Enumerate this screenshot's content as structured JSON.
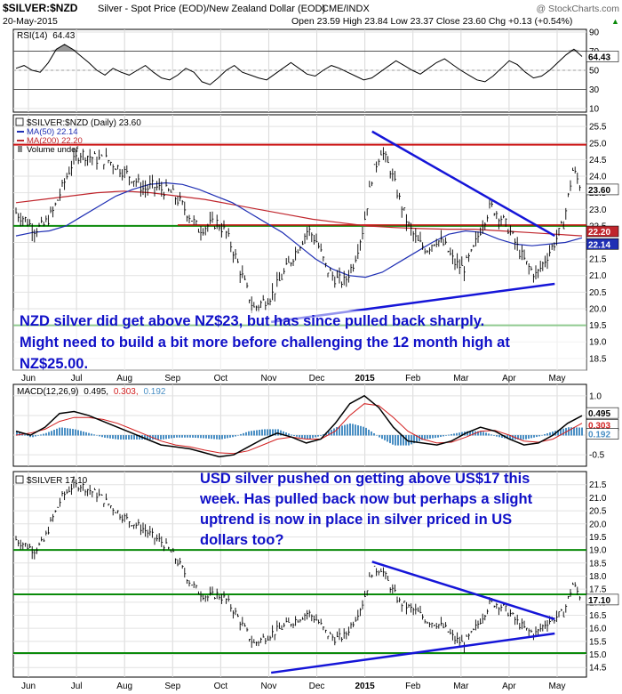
{
  "header": {
    "symbol": "$SILVER:$NZD",
    "description": "Silver - Spot Price (EOD)/New Zealand Dollar (EOD)",
    "exchange": "CME/INDX",
    "watermark": "@ StockCharts.com",
    "date": "20-May-2015",
    "ohlc": "Open 23.59  High 23.84  Low 23.37  Close 23.60  Chg +0.13 (+0.54%)",
    "up_arrow": "▲"
  },
  "annotations": {
    "nzd_lines": [
      "NZD silver did get above NZ$23, but has since pulled back sharply.",
      "Might need to build a bit more before challenging the 12 month high at",
      "NZ$25.00."
    ],
    "usd_lines": [
      "USD silver pushed on getting above US$17 this",
      "week. Has pulled back now but perhaps a slight",
      "uptrend is now in place in silver priced in US",
      "dollars too?"
    ]
  },
  "x_axis": {
    "months": [
      "Jun",
      "Jul",
      "Aug",
      "Sep",
      "Oct",
      "Nov",
      "Dec",
      "2015",
      "Feb",
      "Mar",
      "Apr",
      "May"
    ],
    "month_positions": [
      0,
      1,
      2,
      3,
      4,
      5,
      6,
      7,
      8,
      9,
      10,
      11
    ]
  },
  "colors": {
    "price": "#000000",
    "ma50": "#1f2fb4",
    "ma200": "#c0262d",
    "trend": "#1515d8",
    "support": "#0a8a0a",
    "resistance": "#cc1111",
    "macd_hist": "#4a8fc4",
    "annotation": "#1010c8"
  },
  "chart_data": [
    {
      "id": "rsi",
      "type": "line",
      "title": "RSI(14) 64.43",
      "label_prefix": "RSI(14)",
      "label_value": "64.43",
      "y_ticks": [
        10,
        30,
        50,
        70,
        90
      ],
      "ylim": [
        10,
        90
      ],
      "ref_lines": [
        30,
        70
      ],
      "last_tag": "64.43",
      "last_value": 64.43,
      "values": [
        52,
        55,
        50,
        48,
        58,
        72,
        77,
        72,
        65,
        58,
        50,
        45,
        52,
        48,
        45,
        50,
        55,
        48,
        42,
        40,
        45,
        52,
        48,
        38,
        35,
        42,
        50,
        55,
        48,
        45,
        42,
        40,
        46,
        52,
        58,
        52,
        46,
        44,
        50,
        55,
        52,
        48,
        44,
        40,
        42,
        48,
        54,
        60,
        55,
        50,
        46,
        52,
        58,
        62,
        56,
        50,
        45,
        40,
        38,
        44,
        52,
        60,
        56,
        48,
        42,
        44,
        50,
        58,
        66,
        72,
        64.43
      ]
    },
    {
      "id": "price",
      "type": "line",
      "title": "$SILVER:$NZD (Daily) 23.60",
      "label_main": "$SILVER:$NZD (Daily) 23.60",
      "label_ma50": "MA(50) 22.14",
      "label_ma200": "MA(200) 22.20",
      "label_volume": "Volume undef",
      "y_ticks": [
        18.5,
        19.0,
        19.5,
        20.0,
        20.5,
        21.0,
        21.5,
        22.0,
        22.5,
        23.0,
        23.5,
        24.0,
        24.5,
        25.0,
        25.5
      ],
      "ylim": [
        18.2,
        25.8
      ],
      "resistance": 24.95,
      "support_mid": 22.5,
      "support_low": 19.5,
      "tags": [
        {
          "text": "23.60",
          "value": 23.6,
          "kind": "price"
        },
        {
          "text": "22.20",
          "value": 22.2,
          "kind": "ma200"
        },
        {
          "text": "22.14",
          "value": 22.14,
          "kind": "ma50"
        }
      ],
      "close": [
        22.9,
        22.7,
        22.4,
        22.5,
        22.9,
        23.6,
        24.3,
        24.7,
        24.6,
        24.5,
        24.5,
        24.3,
        24.1,
        23.9,
        23.6,
        23.7,
        23.6,
        23.5,
        23.2,
        22.8,
        22.4,
        22.5,
        22.6,
        22.3,
        21.6,
        20.8,
        20.0,
        20.2,
        20.4,
        20.9,
        21.4,
        21.9,
        22.4,
        22.0,
        21.2,
        20.9,
        20.8,
        21.4,
        22.4,
        24.0,
        24.8,
        24.2,
        23.3,
        22.5,
        22.0,
        21.8,
        22.1,
        21.9,
        21.4,
        21.2,
        21.7,
        22.5,
        23.1,
        22.8,
        22.4,
        21.8,
        21.3,
        21.0,
        21.5,
        22.0,
        22.6,
        24.2,
        23.6
      ],
      "ma50": [
        22.2,
        22.3,
        22.35,
        22.5,
        22.8,
        23.1,
        23.4,
        23.6,
        23.75,
        23.8,
        23.75,
        23.6,
        23.4,
        23.2,
        22.9,
        22.6,
        22.3,
        21.9,
        21.5,
        21.2,
        21.0,
        20.95,
        21.1,
        21.4,
        21.7,
        22.0,
        22.25,
        22.35,
        22.3,
        22.1,
        21.95,
        21.9,
        21.95,
        22.0,
        22.14
      ],
      "ma200": [
        23.2,
        23.3,
        23.4,
        23.5,
        23.55,
        23.5,
        23.4,
        23.3,
        23.15,
        23.0,
        22.85,
        22.7,
        22.6,
        22.5,
        22.45,
        22.42,
        22.4,
        22.4,
        22.35,
        22.3,
        22.25,
        22.2
      ],
      "trend_down": {
        "x": [
          7.15,
          10.95
        ],
        "y": [
          25.35,
          22.2
        ]
      },
      "trend_up": {
        "x": [
          5.05,
          10.95
        ],
        "y": [
          19.6,
          20.75
        ]
      }
    },
    {
      "id": "macd",
      "type": "line",
      "title": "MACD(12,26,9) 0.495, 0.303, 0.192",
      "label_prefix": "MACD(12,26,9)",
      "label_macd": "0.495,",
      "label_signal": "0.303,",
      "label_hist": "0.192",
      "y_ticks": [
        -0.5,
        0.0,
        0.5,
        1.0
      ],
      "ylim": [
        -0.7,
        1.2
      ],
      "tags": [
        {
          "text": "0.495",
          "value": 0.495
        },
        {
          "text": "0.303",
          "value": 0.303
        },
        {
          "text": "0.192",
          "value": 0.192
        }
      ],
      "macd": [
        0.1,
        0.0,
        0.2,
        0.55,
        0.6,
        0.5,
        0.35,
        0.2,
        0.05,
        -0.1,
        -0.25,
        -0.3,
        -0.35,
        -0.45,
        -0.55,
        -0.5,
        -0.3,
        -0.1,
        0.05,
        -0.05,
        -0.2,
        -0.1,
        0.3,
        0.8,
        1.0,
        0.7,
        0.2,
        -0.15,
        -0.2,
        -0.25,
        -0.15,
        0.05,
        0.2,
        0.1,
        -0.1,
        -0.25,
        -0.2,
        0.0,
        0.3,
        0.495
      ],
      "signal": [
        0.0,
        0.05,
        0.15,
        0.35,
        0.45,
        0.45,
        0.4,
        0.3,
        0.15,
        0.0,
        -0.15,
        -0.25,
        -0.3,
        -0.38,
        -0.45,
        -0.47,
        -0.4,
        -0.25,
        -0.1,
        -0.05,
        -0.1,
        -0.1,
        0.1,
        0.5,
        0.8,
        0.75,
        0.45,
        0.1,
        -0.1,
        -0.2,
        -0.18,
        -0.05,
        0.1,
        0.12,
        0.0,
        -0.15,
        -0.18,
        -0.1,
        0.1,
        0.303
      ]
    },
    {
      "id": "usd",
      "type": "line",
      "title": "$SILVER 17.10",
      "label_main": "$SILVER 17.10",
      "y_ticks": [
        14.5,
        15.0,
        15.5,
        16.0,
        16.5,
        17.0,
        17.5,
        18.0,
        18.5,
        19.0,
        19.5,
        20.0,
        20.5,
        21.0,
        21.5
      ],
      "ylim": [
        14.2,
        21.9
      ],
      "resistance": 19.0,
      "support_mid": 17.3,
      "support_low": 15.05,
      "tags": [
        {
          "text": "17.10",
          "value": 17.1
        }
      ],
      "close": [
        19.4,
        19.2,
        19.0,
        19.3,
        20.2,
        21.0,
        21.4,
        21.5,
        21.3,
        21.1,
        20.8,
        20.5,
        20.2,
        20.0,
        19.8,
        19.5,
        19.3,
        18.9,
        18.4,
        17.8,
        17.4,
        17.2,
        17.3,
        17.1,
        16.6,
        16.0,
        15.4,
        15.6,
        15.8,
        16.0,
        16.2,
        16.4,
        16.6,
        16.3,
        15.8,
        15.6,
        15.7,
        16.3,
        17.0,
        18.2,
        18.3,
        17.6,
        17.0,
        16.8,
        16.6,
        16.3,
        16.2,
        16.0,
        15.6,
        15.4,
        15.8,
        16.4,
        17.0,
        16.9,
        16.6,
        16.2,
        15.9,
        15.8,
        16.2,
        16.4,
        16.6,
        17.7,
        17.1
      ],
      "trend_down": {
        "x": [
          7.15,
          10.95
        ],
        "y": [
          18.55,
          16.35
        ]
      },
      "trend_up": {
        "x": [
          5.05,
          10.95
        ],
        "y": [
          14.3,
          15.8
        ]
      }
    }
  ]
}
